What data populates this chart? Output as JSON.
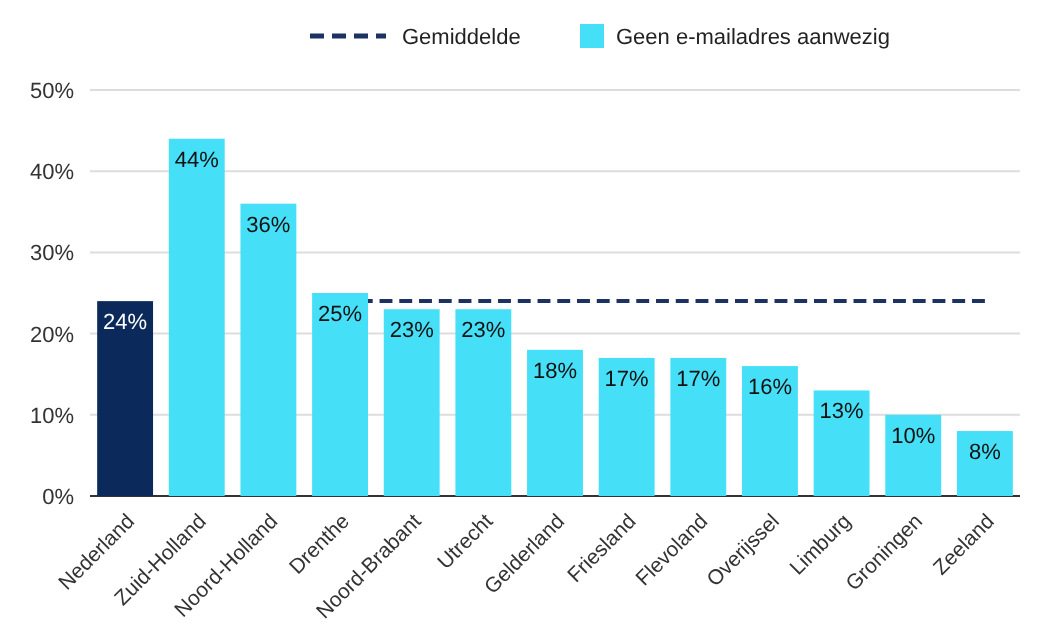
{
  "chart_data": {
    "type": "bar",
    "categories": [
      "Nederland",
      "Zuid-Holland",
      "Noord-Holland",
      "Drenthe",
      "Noord-Brabant",
      "Utrecht",
      "Gelderland",
      "Friesland",
      "Flevoland",
      "Overijssel",
      "Limburg",
      "Groningen",
      "Zeeland"
    ],
    "series": [
      {
        "type": "line",
        "name": "Gemiddelde",
        "color": "#1c3263",
        "line_style": "dashed",
        "values": [
          null,
          null,
          null,
          24,
          24,
          24,
          24,
          24,
          24,
          24,
          24,
          24,
          24
        ]
      },
      {
        "name": "Geen e-mailadres aanwezig",
        "color": "#45e0f7",
        "colors": [
          "#0b2a5b",
          "#45e0f7",
          "#45e0f7",
          "#45e0f7",
          "#45e0f7",
          "#45e0f7",
          "#45e0f7",
          "#45e0f7",
          "#45e0f7",
          "#45e0f7",
          "#45e0f7",
          "#45e0f7",
          "#45e0f7"
        ],
        "values": [
          24,
          44,
          36,
          25,
          23,
          23,
          18,
          17,
          17,
          16,
          13,
          10,
          8
        ],
        "value_labels": [
          "24%",
          "44%",
          "36%",
          "25%",
          "23%",
          "23%",
          "18%",
          "17%",
          "17%",
          "16%",
          "13%",
          "10%",
          "8%"
        ]
      }
    ],
    "ylim": [
      0,
      50
    ],
    "yticks": [
      {
        "value": 0,
        "label": "0%"
      },
      {
        "value": 10,
        "label": "10%"
      },
      {
        "value": 20,
        "label": "20%"
      },
      {
        "value": 30,
        "label": "30%"
      },
      {
        "value": 40,
        "label": "40%"
      },
      {
        "value": 50,
        "label": "50%"
      }
    ],
    "grid": "y",
    "legend": "top"
  }
}
